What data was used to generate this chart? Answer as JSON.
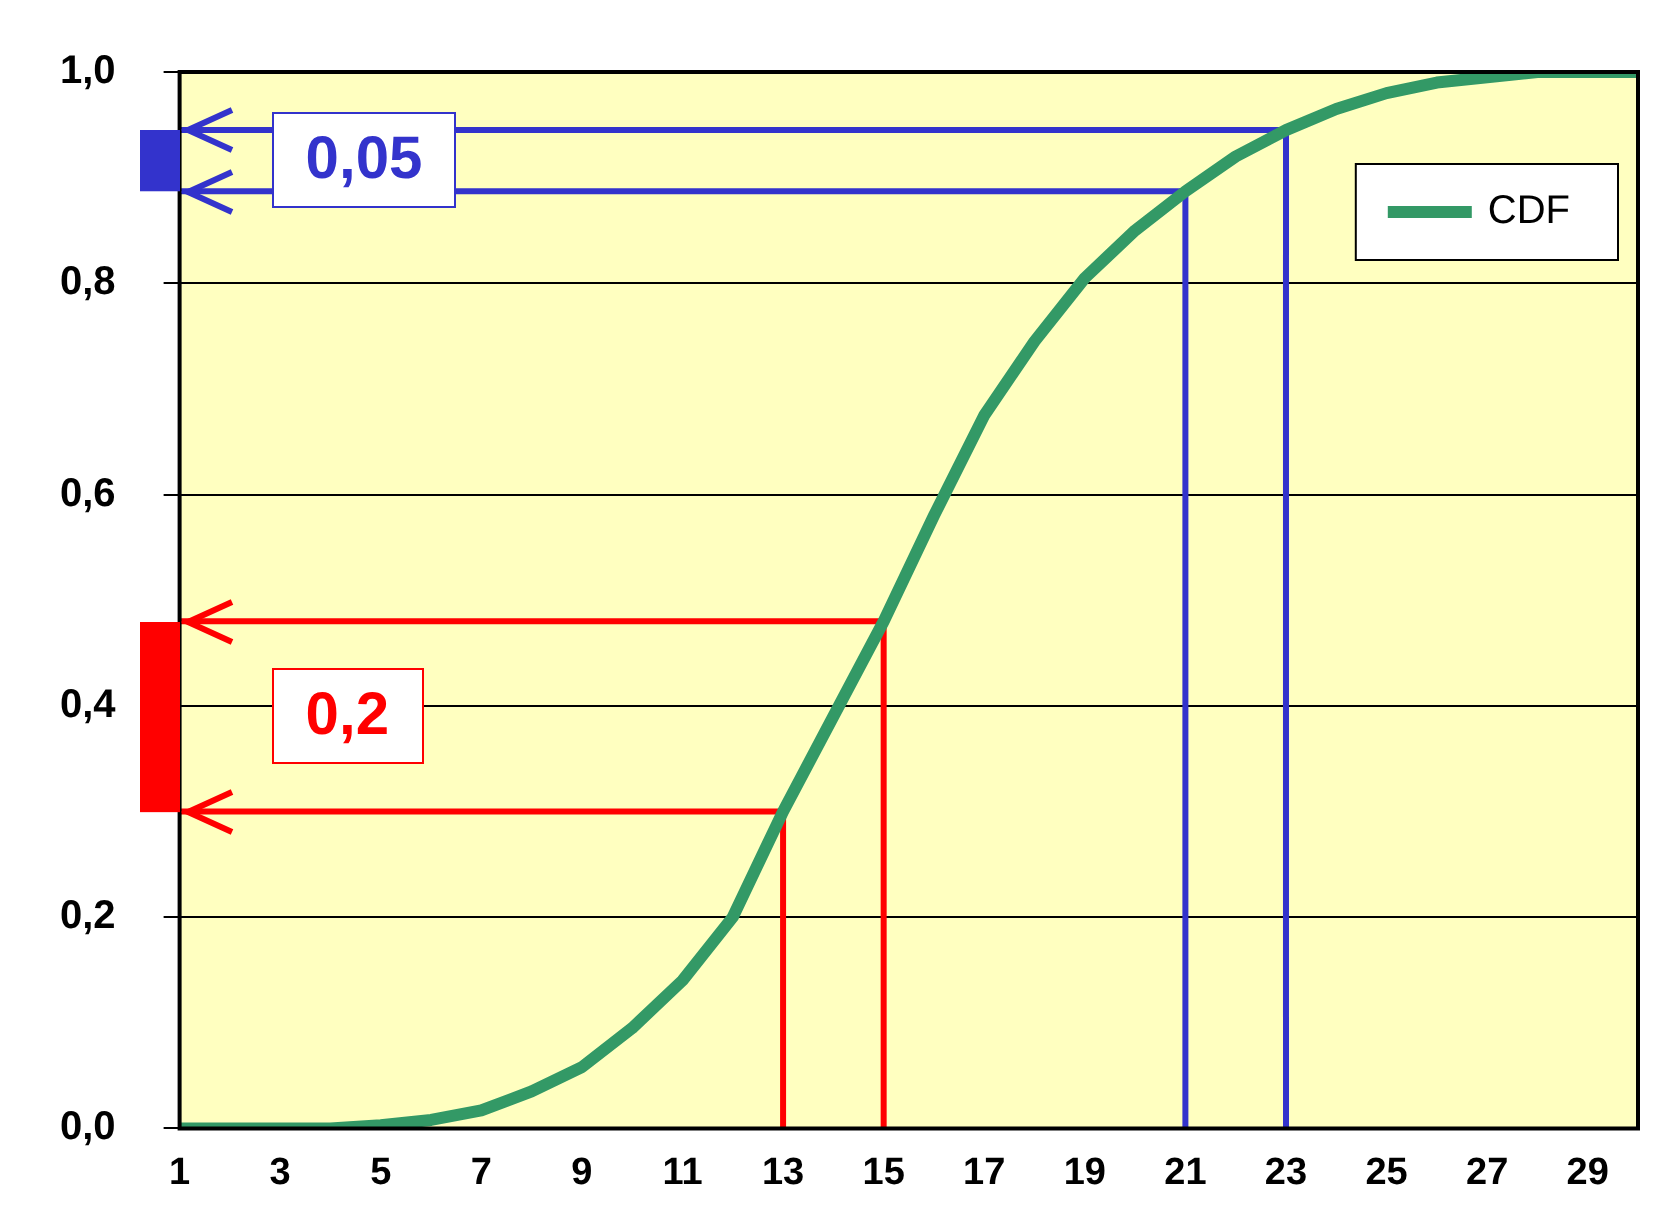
{
  "chart_data": {
    "type": "line",
    "x": [
      1,
      2,
      3,
      4,
      5,
      6,
      7,
      8,
      9,
      10,
      11,
      12,
      13,
      14,
      15,
      16,
      17,
      18,
      19,
      20,
      21,
      22,
      23,
      24,
      25,
      26,
      27,
      28,
      29,
      30
    ],
    "series": [
      {
        "name": "CDF",
        "color": "#339966",
        "values": [
          0,
          0,
          0,
          0,
          0.003,
          0.008,
          0.017,
          0.035,
          0.058,
          0.095,
          0.14,
          0.2,
          0.3,
          0.39,
          0.48,
          0.58,
          0.675,
          0.745,
          0.805,
          0.85,
          0.887,
          0.92,
          0.945,
          0.965,
          0.98,
          0.99,
          0.995,
          1,
          1,
          1
        ]
      },
      {
        "color": "#ff0000",
        "x": [
          1,
          13,
          13
        ],
        "values": [
          0.3,
          0.3,
          0
        ]
      },
      {
        "color": "#ff0000",
        "x": [
          1,
          15,
          15
        ],
        "values": [
          0.48,
          0.48,
          0
        ]
      },
      {
        "color": "#3333cc",
        "x": [
          1,
          21,
          21
        ],
        "values": [
          0.887,
          0.887,
          0
        ]
      },
      {
        "color": "#3333cc",
        "x": [
          1,
          23,
          23
        ],
        "values": [
          0.945,
          0.945,
          0
        ]
      }
    ],
    "xlim": [
      1,
      30
    ],
    "xticks": [
      1,
      3,
      5,
      7,
      9,
      11,
      13,
      15,
      17,
      19,
      21,
      23,
      25,
      27,
      29
    ],
    "ylim": [
      0,
      1
    ],
    "yticks": [
      {
        "value": 0,
        "label": "0,0"
      },
      {
        "value": 0.2,
        "label": "0,2"
      },
      {
        "value": 0.4,
        "label": "0,4"
      },
      {
        "value": 0.6,
        "label": "0,6"
      },
      {
        "value": 0.8,
        "label": "0,8"
      },
      {
        "value": 1,
        "label": "1,0"
      }
    ],
    "grid": "y",
    "legend": "top right",
    "marker": "none",
    "line_style": "solid",
    "annotations": [
      "0,2",
      "0,05"
    ]
  }
}
